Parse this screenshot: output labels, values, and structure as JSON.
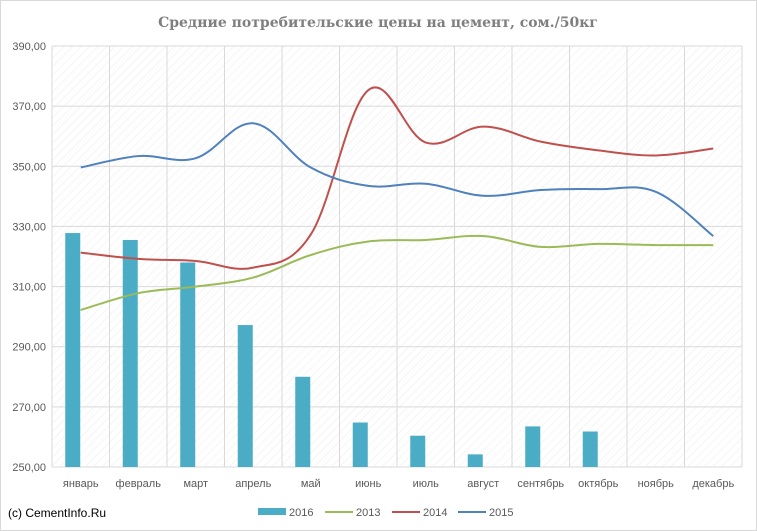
{
  "chart_data": {
    "type": "line",
    "title": "Средние потребительские цены на цемент, сом./50кг",
    "credit": "(c) CementInfo.Ru",
    "categories": [
      "январь",
      "февраль",
      "март",
      "апрель",
      "май",
      "июнь",
      "июль",
      "август",
      "сентябрь",
      "октябрь",
      "ноябрь",
      "декабрь"
    ],
    "ylim": [
      250,
      390
    ],
    "yticks": [
      "250,00",
      "270,00",
      "290,00",
      "310,00",
      "330,00",
      "350,00",
      "370,00",
      "390,00"
    ],
    "grid": true,
    "legend_position": "bottom",
    "legend": [
      "2016",
      "2013",
      "2014",
      "2015"
    ],
    "series": [
      {
        "name": "2016",
        "type": "bar",
        "color": "#4bacc6",
        "values": [
          327.8,
          325.5,
          318,
          297.2,
          280,
          264.8,
          260.4,
          254.2,
          263.5,
          261.8,
          null,
          null
        ]
      },
      {
        "name": "2013",
        "type": "line",
        "color": "#9bbb59",
        "values": [
          302.2,
          307.8,
          310,
          313,
          320.5,
          325,
          325.5,
          326.8,
          323.2,
          324.2,
          323.8,
          323.8
        ]
      },
      {
        "name": "2014",
        "type": "line",
        "color": "#c0504d",
        "values": [
          321.3,
          319.2,
          318.5,
          316.3,
          327.3,
          375.3,
          357.9,
          363.2,
          358.2,
          355.3,
          353.6,
          355.9
        ]
      },
      {
        "name": "2015",
        "type": "line",
        "color": "#4f81bd",
        "values": [
          349.6,
          353.4,
          352.7,
          364.3,
          349.6,
          343.5,
          344.2,
          340.2,
          342.1,
          342.4,
          341.5,
          326.8
        ]
      }
    ]
  }
}
